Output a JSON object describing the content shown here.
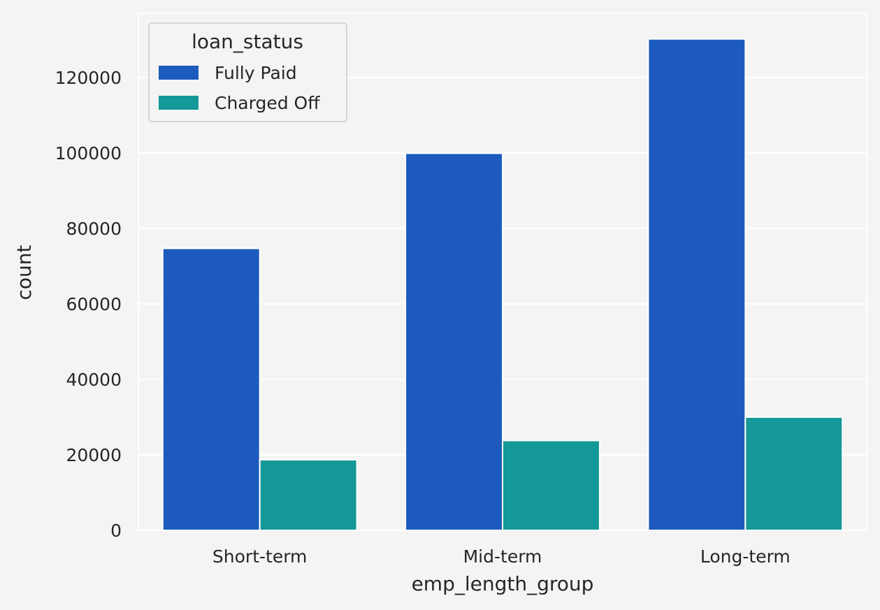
{
  "chart_data": {
    "type": "bar",
    "title": "",
    "xlabel": "emp_length_group",
    "ylabel": "count",
    "categories": [
      "Short-term",
      "Mid-term",
      "Long-term"
    ],
    "series": [
      {
        "name": "Fully Paid",
        "color": "#1c5bbd",
        "values": [
          74700,
          99900,
          130200
        ]
      },
      {
        "name": "Charged Off",
        "color": "#159898",
        "values": [
          18700,
          23800,
          30000
        ]
      }
    ],
    "ylim": [
      0,
      137000
    ],
    "yticks": [
      0,
      20000,
      40000,
      60000,
      80000,
      100000,
      120000
    ],
    "grid": true,
    "legend": {
      "title": "loan_status",
      "placement": "top-left"
    }
  }
}
